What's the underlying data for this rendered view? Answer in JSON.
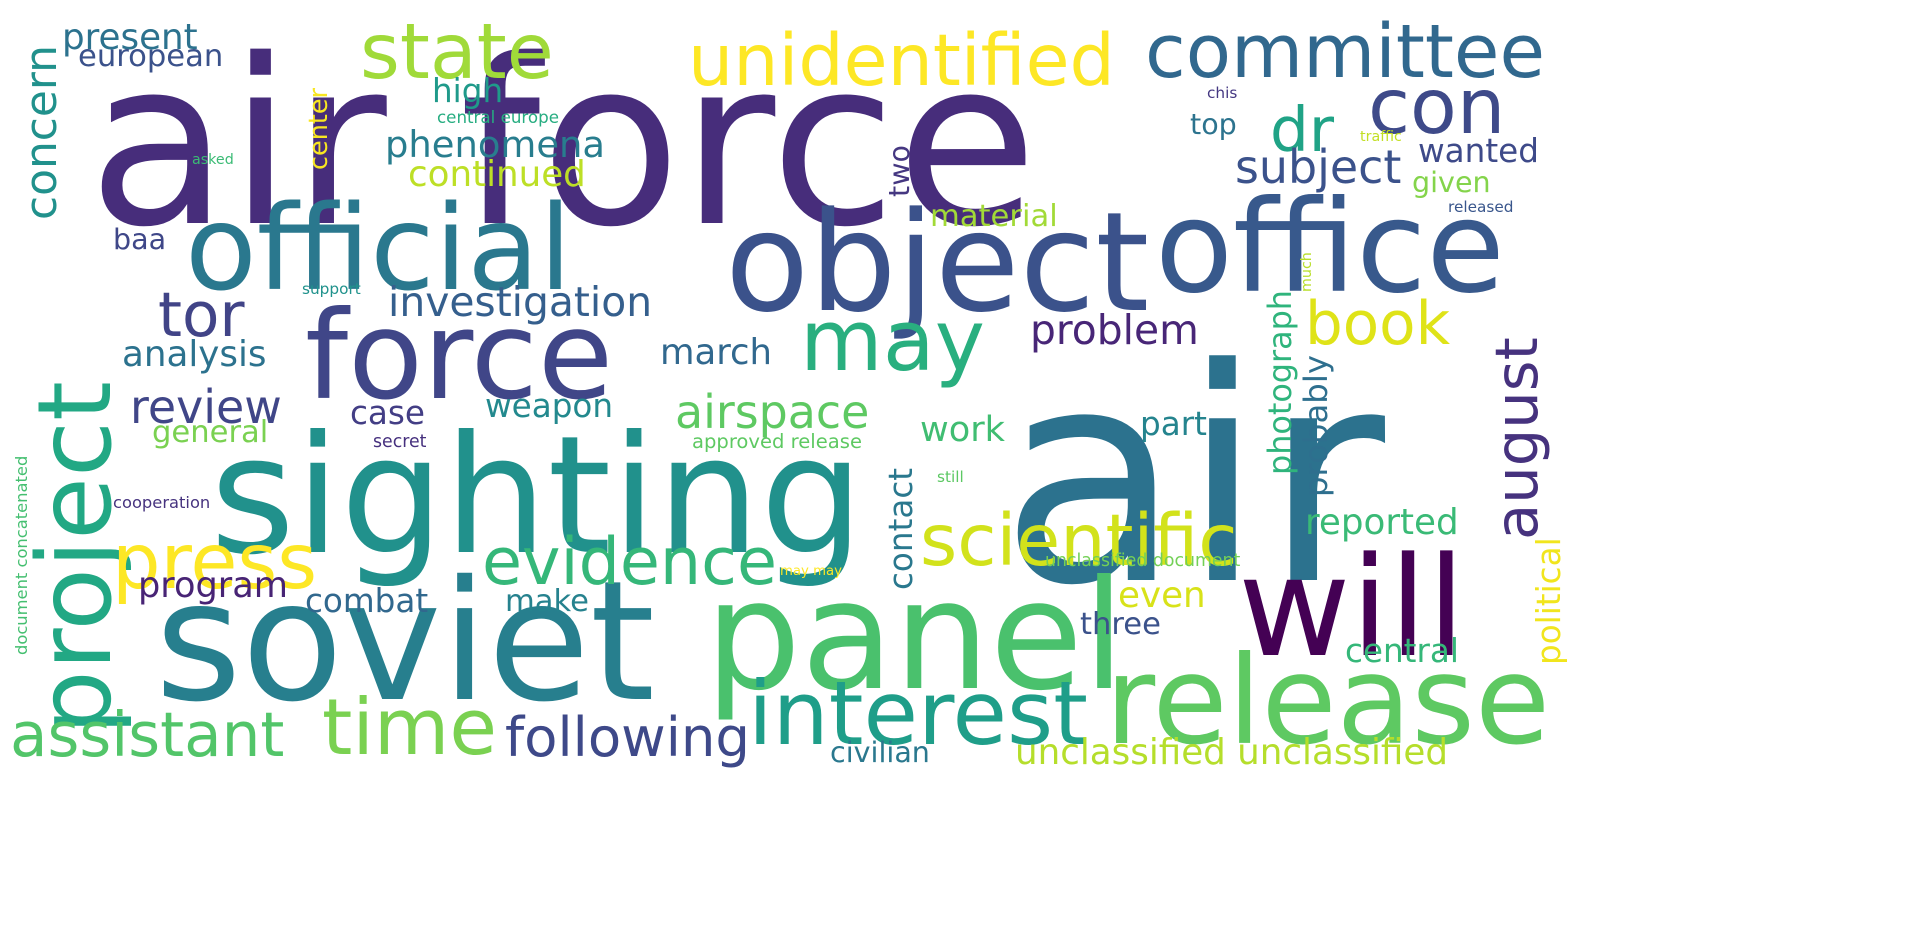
{
  "words": [
    {
      "text": "air force",
      "color": "#472d7b"
    },
    {
      "text": "air",
      "color": "#2c728e"
    },
    {
      "text": "sighting",
      "color": "#21918c"
    },
    {
      "text": "soviet",
      "color": "#277f8e"
    },
    {
      "text": "panel",
      "color": "#4ac16d"
    },
    {
      "text": "object",
      "color": "#3b528b"
    },
    {
      "text": "office",
      "color": "#38598c"
    },
    {
      "text": "official",
      "color": "#2a788e"
    },
    {
      "text": "force",
      "color": "#404688"
    },
    {
      "text": "release",
      "color": "#5ec962"
    },
    {
      "text": "project",
      "color": "#22a884"
    },
    {
      "text": "will",
      "color": "#440154"
    },
    {
      "text": "committee",
      "color": "#31688e"
    },
    {
      "text": "may",
      "color": "#29af7f"
    },
    {
      "text": "interest",
      "color": "#1f9e89"
    },
    {
      "text": "time",
      "color": "#7ad151"
    },
    {
      "text": "state",
      "color": "#a0da39"
    },
    {
      "text": "unidentified",
      "color": "#fde725"
    },
    {
      "text": "con",
      "color": "#3e4a89"
    },
    {
      "text": "august",
      "color": "#46327e"
    },
    {
      "text": "scientific",
      "color": "#d2e21b"
    },
    {
      "text": "press",
      "color": "#fde725"
    },
    {
      "text": "evidence",
      "color": "#35b779"
    },
    {
      "text": "assistant",
      "color": "#52c569"
    },
    {
      "text": "dr",
      "color": "#20a386"
    },
    {
      "text": "tor",
      "color": "#414487"
    },
    {
      "text": "book",
      "color": "#dfe318"
    },
    {
      "text": "following",
      "color": "#3e4989"
    },
    {
      "text": "airspace",
      "color": "#5ec962"
    },
    {
      "text": "subject",
      "color": "#3b528b"
    },
    {
      "text": "investigation",
      "color": "#355f8d"
    },
    {
      "text": "review",
      "color": "#404688"
    },
    {
      "text": "phenomena",
      "color": "#287d8e"
    },
    {
      "text": "problem",
      "color": "#482677"
    },
    {
      "text": "unclassified unclassified",
      "color": "#b5de2b"
    },
    {
      "text": "photograph",
      "color": "#2fb47c"
    },
    {
      "text": "continued",
      "color": "#bddf26"
    },
    {
      "text": "concern",
      "color": "#21918c"
    },
    {
      "text": "present",
      "color": "#2c728e"
    },
    {
      "text": "european",
      "color": "#3b528b"
    },
    {
      "text": "march",
      "color": "#31688e"
    },
    {
      "text": "analysis",
      "color": "#2c728e"
    },
    {
      "text": "reported",
      "color": "#3aba76"
    },
    {
      "text": "contact",
      "color": "#2a788e"
    },
    {
      "text": "weapon",
      "color": "#23898e"
    },
    {
      "text": "combat",
      "color": "#31688e"
    },
    {
      "text": "program",
      "color": "#482475"
    },
    {
      "text": "work",
      "color": "#40bd72"
    },
    {
      "text": "case",
      "color": "#433e85"
    },
    {
      "text": "general",
      "color": "#7ad151"
    },
    {
      "text": "even",
      "color": "#d8e219"
    },
    {
      "text": "make",
      "color": "#26828e"
    },
    {
      "text": "part",
      "color": "#25848e"
    },
    {
      "text": "three",
      "color": "#3b528b"
    },
    {
      "text": "central",
      "color": "#35b779"
    },
    {
      "text": "civilian",
      "color": "#2a788e"
    },
    {
      "text": "high",
      "color": "#1f9a8a"
    },
    {
      "text": "material",
      "color": "#a2da37"
    },
    {
      "text": "top",
      "color": "#2c738e"
    },
    {
      "text": "wanted",
      "color": "#3e4a89"
    },
    {
      "text": "given",
      "color": "#84d44b"
    },
    {
      "text": "probably",
      "color": "#2e6f8e"
    },
    {
      "text": "two",
      "color": "#453781"
    },
    {
      "text": "political",
      "color": "#f1e51d"
    },
    {
      "text": "center",
      "color": "#f8e621"
    },
    {
      "text": "baa",
      "color": "#3f4788"
    },
    {
      "text": "approved release",
      "color": "#5ec962"
    },
    {
      "text": "secret",
      "color": "#46307e"
    },
    {
      "text": "cooperation",
      "color": "#46337f"
    },
    {
      "text": "document concatenated",
      "color": "#44bf70"
    },
    {
      "text": "central europe",
      "color": "#27ad81"
    },
    {
      "text": "support",
      "color": "#20928c"
    },
    {
      "text": "asked",
      "color": "#3bbb75"
    },
    {
      "text": "chis",
      "color": "#453882"
    },
    {
      "text": "traffic",
      "color": "#c2df23"
    },
    {
      "text": "released",
      "color": "#39568c"
    },
    {
      "text": "much",
      "color": "#b8de29"
    },
    {
      "text": "still",
      "color": "#5cc863"
    },
    {
      "text": "unclassified document",
      "color": "#73d056"
    },
    {
      "text": "may may",
      "color": "#fde725"
    }
  ]
}
